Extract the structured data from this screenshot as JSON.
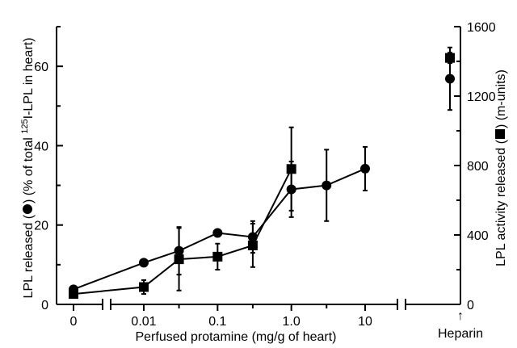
{
  "chart_data": {
    "type": "scatter",
    "title": "",
    "xlabel": "Perfused protamine (mg/g of heart)",
    "ylabel_left": [
      "LPL released (",
      ") (% of total ",
      "125",
      "I-LPL in heart)"
    ],
    "ylabel_right": [
      "LPL activity released (",
      ") (m-units)"
    ],
    "x_tick_labels": [
      "0",
      "0.01",
      "0.1",
      "1.0",
      "10"
    ],
    "x_special_label": "Heparin",
    "x_special_marker": "↑",
    "ylim_left": [
      0,
      70
    ],
    "yticks_left": [
      0,
      20,
      40,
      60
    ],
    "ylim_right": [
      0,
      1600
    ],
    "yticks_right": [
      0,
      400,
      800,
      1200,
      1600
    ],
    "x_scale": "broken: 0 | log 0.01–10 | Heparin",
    "grid": false,
    "series": [
      {
        "marker": "circle",
        "axis": "left",
        "points": [
          {
            "x": 0,
            "y": 3.8,
            "err": 0
          },
          {
            "x": 0.01,
            "y": 10.5,
            "err": 0
          },
          {
            "x": 0.03,
            "y": 13.5,
            "err": 6
          },
          {
            "x": 0.1,
            "y": 18,
            "err": 0
          },
          {
            "x": 0.3,
            "y": 17,
            "err": 4
          },
          {
            "x": 1,
            "y": 29,
            "err": 7
          },
          {
            "x": 3,
            "y": 30,
            "err": 9
          },
          {
            "x": 10,
            "y": 34.2,
            "err": 5.5
          }
        ],
        "heparin": {
          "y": 1300,
          "err": 180
        }
      },
      {
        "marker": "square",
        "axis": "right",
        "points": [
          {
            "x": 0,
            "y": 60,
            "err": 0
          },
          {
            "x": 0.01,
            "y": 100,
            "err": 40
          },
          {
            "x": 0.03,
            "y": 260,
            "err": 180
          },
          {
            "x": 0.1,
            "y": 275,
            "err": 75
          },
          {
            "x": 0.3,
            "y": 340,
            "err": 125
          },
          {
            "x": 1,
            "y": 780,
            "err": 240
          }
        ],
        "heparin": {
          "y": 1420,
          "err": 30
        }
      }
    ]
  }
}
